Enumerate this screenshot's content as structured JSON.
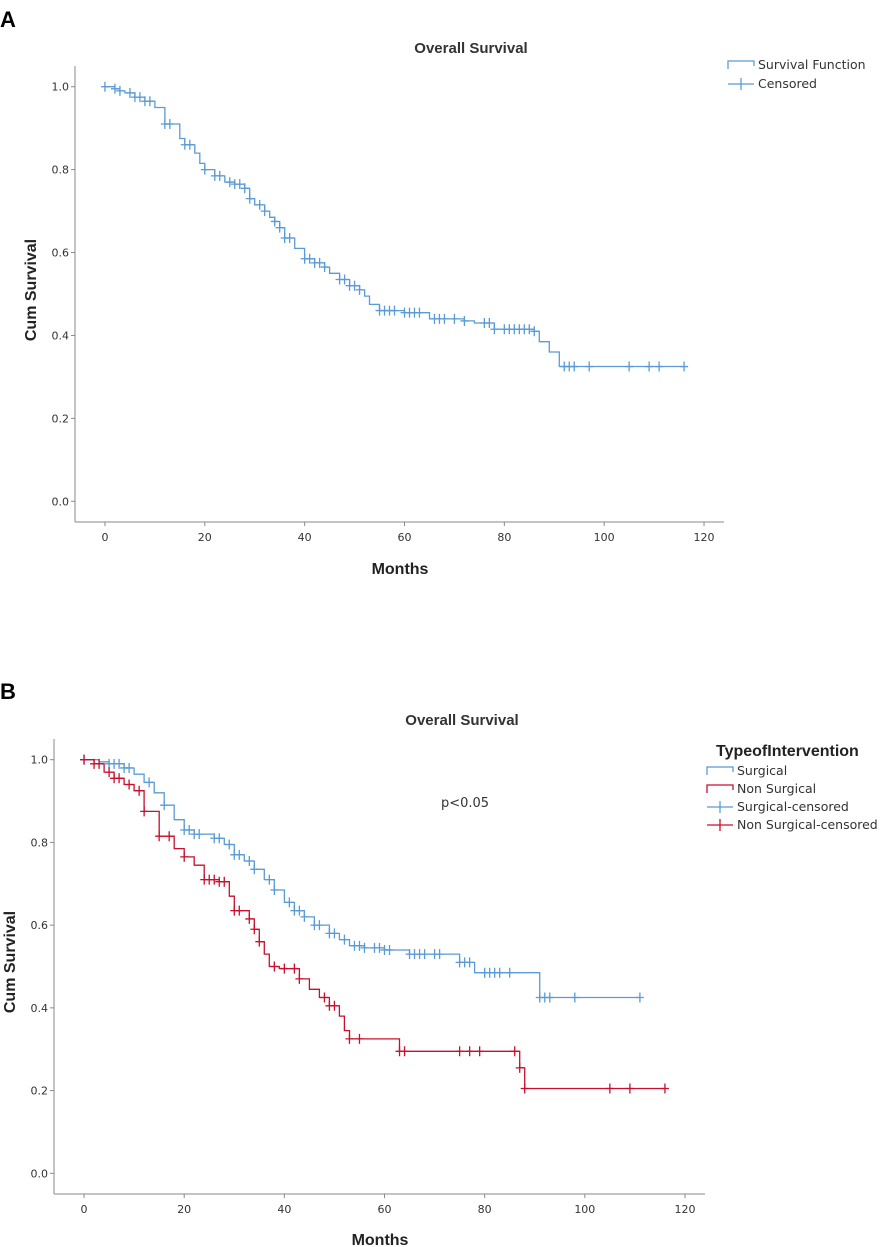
{
  "chart_data": [
    {
      "type": "line",
      "panel": "A",
      "title": "Overall Survival",
      "xlabel": "Months",
      "ylabel": "Cum Survival",
      "xlim": [
        -6,
        124
      ],
      "ylim": [
        -0.05,
        1.05
      ],
      "xticks": [
        0,
        20,
        40,
        60,
        80,
        100,
        120
      ],
      "yticks": [
        0.0,
        0.2,
        0.4,
        0.6,
        0.8,
        1.0
      ],
      "xtick_labels": [
        "0",
        "20",
        "40",
        "60",
        "80",
        "100",
        "120"
      ],
      "ytick_labels": [
        "0.0",
        "0.2",
        "0.4",
        "0.6",
        "0.8",
        "1.0"
      ],
      "legend": [
        "Survival Function",
        "Censored"
      ],
      "series": [
        {
          "name": "Survival Function",
          "color": "#5b9bd5",
          "x": [
            0,
            2,
            3,
            4,
            6,
            8,
            10,
            12,
            15,
            16,
            18,
            19,
            20,
            22,
            24,
            26,
            28,
            29,
            30,
            32,
            33,
            34,
            35,
            36,
            38,
            40,
            42,
            44,
            45,
            47,
            49,
            51,
            52,
            53,
            55,
            60,
            65,
            72,
            74,
            78,
            86,
            87,
            89,
            91,
            116
          ],
          "y": [
            1.0,
            0.995,
            0.99,
            0.985,
            0.975,
            0.965,
            0.95,
            0.91,
            0.875,
            0.86,
            0.84,
            0.815,
            0.8,
            0.785,
            0.77,
            0.765,
            0.755,
            0.73,
            0.715,
            0.7,
            0.685,
            0.675,
            0.66,
            0.635,
            0.61,
            0.585,
            0.575,
            0.565,
            0.55,
            0.535,
            0.52,
            0.51,
            0.495,
            0.475,
            0.46,
            0.455,
            0.44,
            0.435,
            0.43,
            0.415,
            0.41,
            0.385,
            0.36,
            0.325,
            0.325
          ],
          "censored_x": [
            0,
            2,
            3,
            5,
            6,
            7,
            8,
            9,
            12,
            13,
            16,
            17,
            20,
            22,
            23,
            25,
            26,
            27,
            28,
            29,
            31,
            32,
            34,
            35,
            36,
            37,
            40,
            41,
            42,
            43,
            44,
            47,
            48,
            49,
            50,
            51,
            55,
            56,
            57,
            58,
            60,
            61,
            62,
            63,
            66,
            67,
            68,
            70,
            72,
            76,
            77,
            78,
            80,
            81,
            82,
            83,
            84,
            85,
            86,
            92,
            93,
            94,
            97,
            105,
            109,
            111,
            116
          ]
        }
      ]
    },
    {
      "type": "line",
      "panel": "B",
      "title": "Overall Survival",
      "xlabel": "Months",
      "ylabel": "Cum Survival",
      "xlim": [
        -6,
        124
      ],
      "ylim": [
        -0.05,
        1.05
      ],
      "xticks": [
        0,
        20,
        40,
        60,
        80,
        100,
        120
      ],
      "yticks": [
        0.0,
        0.2,
        0.4,
        0.6,
        0.8,
        1.0
      ],
      "xtick_labels": [
        "0",
        "20",
        "40",
        "60",
        "80",
        "100",
        "120"
      ],
      "ytick_labels": [
        "0.0",
        "0.2",
        "0.4",
        "0.6",
        "0.8",
        "1.0"
      ],
      "legend_title": "TypeofIntervention",
      "legend": [
        "Surgical",
        "Non Surgical",
        "Surgical-censored",
        "Non Surgical-censored"
      ],
      "annotation": "p<0.05",
      "series": [
        {
          "name": "Surgical",
          "color": "#5b9bd5",
          "x": [
            0,
            3,
            5,
            8,
            10,
            12,
            14,
            16,
            18,
            20,
            22,
            26,
            28,
            30,
            32,
            34,
            36,
            38,
            40,
            42,
            44,
            46,
            49,
            51,
            53,
            56,
            60,
            65,
            75,
            78,
            91,
            111
          ],
          "y": [
            1.0,
            0.995,
            0.99,
            0.98,
            0.965,
            0.945,
            0.92,
            0.89,
            0.855,
            0.83,
            0.82,
            0.81,
            0.795,
            0.77,
            0.755,
            0.735,
            0.71,
            0.685,
            0.655,
            0.635,
            0.62,
            0.6,
            0.58,
            0.565,
            0.55,
            0.545,
            0.54,
            0.53,
            0.51,
            0.485,
            0.425,
            0.425
          ],
          "censored_x": [
            0,
            5,
            6,
            7,
            8,
            9,
            13,
            16,
            20,
            21,
            22,
            23,
            26,
            27,
            29,
            30,
            31,
            33,
            34,
            37,
            38,
            41,
            42,
            43,
            44,
            46,
            47,
            49,
            50,
            52,
            54,
            55,
            56,
            58,
            59,
            60,
            61,
            65,
            66,
            67,
            68,
            70,
            71,
            75,
            76,
            77,
            80,
            81,
            82,
            83,
            85,
            91,
            92,
            93,
            98,
            111
          ]
        },
        {
          "name": "Non Surgical",
          "color": "#c8102e",
          "x": [
            0,
            2,
            4,
            6,
            8,
            10,
            12,
            15,
            18,
            20,
            22,
            24,
            27,
            29,
            30,
            33,
            34,
            35,
            36,
            37,
            39,
            43,
            45,
            47,
            49,
            51,
            52,
            53,
            54,
            63,
            87,
            88,
            116
          ],
          "y": [
            1.0,
            0.99,
            0.97,
            0.955,
            0.94,
            0.925,
            0.875,
            0.815,
            0.785,
            0.765,
            0.745,
            0.71,
            0.705,
            0.67,
            0.635,
            0.615,
            0.59,
            0.56,
            0.53,
            0.5,
            0.495,
            0.47,
            0.445,
            0.425,
            0.405,
            0.38,
            0.345,
            0.325,
            0.325,
            0.295,
            0.255,
            0.205,
            0.205
          ],
          "censored_x": [
            0,
            2,
            3,
            5,
            6,
            7,
            9,
            11,
            12,
            15,
            17,
            20,
            24,
            25,
            26,
            27,
            28,
            30,
            31,
            33,
            34,
            35,
            38,
            40,
            42,
            43,
            48,
            49,
            50,
            53,
            55,
            63,
            64,
            75,
            77,
            79,
            86,
            87,
            88,
            105,
            109,
            116
          ]
        }
      ]
    }
  ],
  "panels": {
    "a_label": "A",
    "b_label": "B"
  }
}
